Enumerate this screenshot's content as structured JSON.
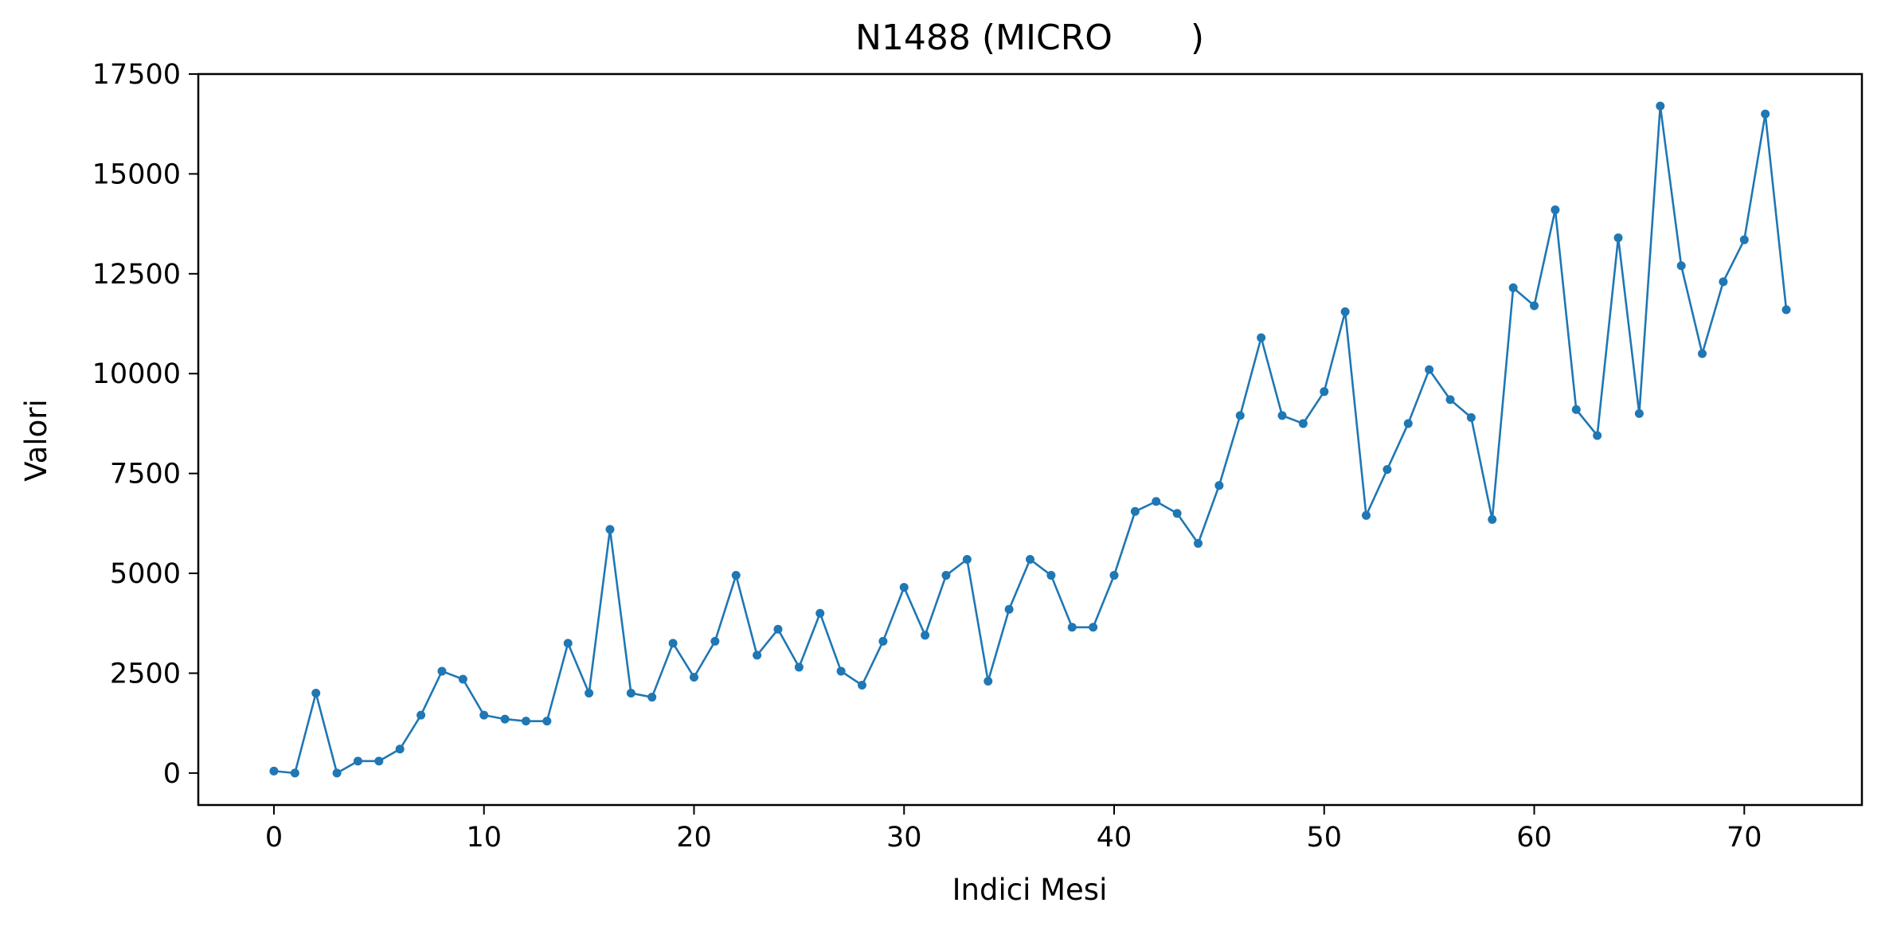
{
  "chart_data": {
    "type": "line",
    "title": "N1488 (MICRO       )",
    "xlabel": "Indici Mesi",
    "ylabel": "Valori",
    "xlim": [
      -3.6,
      75.6
    ],
    "ylim": [
      -800,
      17500
    ],
    "xticks": [
      0,
      10,
      20,
      30,
      40,
      50,
      60,
      70
    ],
    "yticks": [
      0,
      2500,
      5000,
      7500,
      10000,
      12500,
      15000,
      17500
    ],
    "grid": false,
    "line_color": "#1f77b4",
    "series": [
      {
        "x": [
          0,
          1,
          2,
          3,
          4,
          5,
          6,
          7,
          8,
          9,
          10,
          11,
          12,
          13,
          14,
          15,
          16,
          17,
          18,
          19,
          20,
          21,
          22,
          23,
          24,
          25,
          26,
          27,
          28,
          29,
          30,
          31,
          32,
          33,
          34,
          35,
          36,
          37,
          38,
          39,
          40,
          41,
          42,
          43,
          44,
          45,
          46,
          47,
          48,
          49,
          50,
          51,
          52,
          53,
          54,
          55,
          56,
          57,
          58,
          59,
          60,
          61,
          62,
          63,
          64,
          65,
          66,
          67,
          68,
          69,
          70,
          71,
          72
        ],
        "values": [
          50,
          0,
          2000,
          0,
          300,
          300,
          600,
          1450,
          2550,
          2350,
          1450,
          1350,
          1300,
          1300,
          3250,
          2000,
          6100,
          2000,
          1900,
          3250,
          2400,
          3300,
          4950,
          2950,
          3600,
          2650,
          4000,
          2550,
          2200,
          3300,
          4650,
          3450,
          4950,
          5350,
          2300,
          4100,
          5350,
          4950,
          3650,
          3650,
          4950,
          6550,
          6800,
          6500,
          5750,
          7200,
          8950,
          10900,
          8950,
          8750,
          9550,
          11550,
          6450,
          7600,
          8750,
          10100,
          9350,
          8900,
          6350,
          12150,
          11700,
          14100,
          9100,
          8450,
          13400,
          9000,
          16700,
          12700,
          10500,
          12300,
          13350,
          16500,
          11600
        ]
      }
    ]
  }
}
